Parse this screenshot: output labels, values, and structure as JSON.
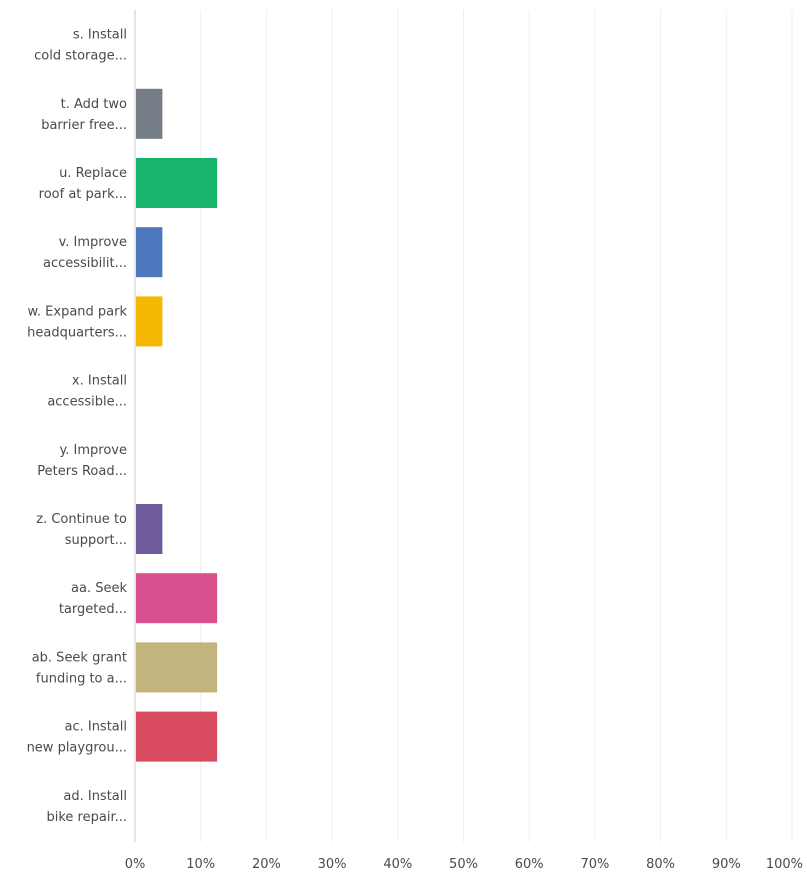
{
  "chart_data": {
    "type": "bar",
    "orientation": "horizontal",
    "categories": [
      [
        "s. Install",
        "cold storage..."
      ],
      [
        "t. Add two",
        "barrier free..."
      ],
      [
        "u. Replace",
        "roof at park..."
      ],
      [
        "v. Improve",
        "accessibilit..."
      ],
      [
        "w. Expand park",
        "headquarters..."
      ],
      [
        "x. Install",
        "accessible..."
      ],
      [
        "y. Improve",
        "Peters Road..."
      ],
      [
        "z. Continue to",
        "support..."
      ],
      [
        "aa. Seek",
        "targeted..."
      ],
      [
        "ab. Seek grant",
        "funding to a..."
      ],
      [
        "ac. Install",
        "new playgrou..."
      ],
      [
        "ad. Install",
        "bike repair..."
      ]
    ],
    "values": [
      0,
      4.17,
      12.5,
      4.17,
      4.17,
      0,
      0,
      4.17,
      12.5,
      12.5,
      12.5,
      0
    ],
    "colors": [
      "#6b8fd4",
      "#757d86",
      "#1ab36b",
      "#4f77be",
      "#f5b800",
      "#6b8fd4",
      "#6b8fd4",
      "#6f5a9c",
      "#d9508f",
      "#c2b47c",
      "#d84a5e",
      "#6b8fd4"
    ],
    "xlim": [
      0,
      100
    ],
    "xticks": [
      "0%",
      "10%",
      "20%",
      "30%",
      "40%",
      "50%",
      "60%",
      "70%",
      "80%",
      "90%",
      "100%"
    ],
    "grid": true,
    "legend": "none"
  }
}
